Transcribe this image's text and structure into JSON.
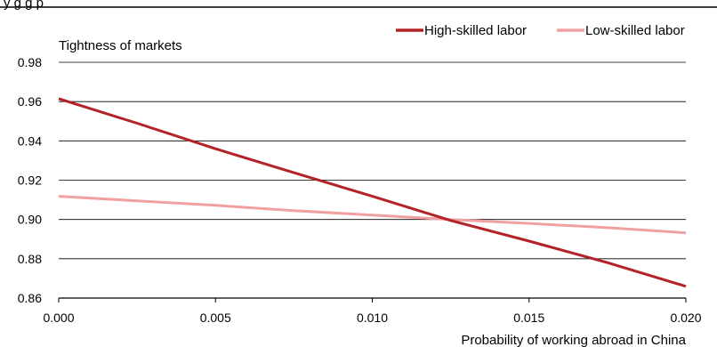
{
  "chart_data": {
    "type": "line",
    "top_title_partial": "y       g           g                     p",
    "ylabel": "Tightness of markets",
    "xlabel": "Probability of working abroad in China",
    "xlim": [
      0.0,
      0.02
    ],
    "ylim": [
      0.86,
      0.98
    ],
    "x_ticks": [
      "0.000",
      "0.005",
      "0.010",
      "0.015",
      "0.020"
    ],
    "x_tick_values": [
      0.0,
      0.005,
      0.01,
      0.015,
      0.02
    ],
    "y_ticks": [
      "0.86",
      "0.88",
      "0.90",
      "0.92",
      "0.94",
      "0.96",
      "0.98"
    ],
    "y_tick_values": [
      0.86,
      0.88,
      0.9,
      0.92,
      0.94,
      0.96,
      0.98
    ],
    "grid": "horizontal",
    "legend_position": "top-right",
    "series": [
      {
        "name": "High-skilled labor",
        "color": "#b22227",
        "x": [
          0.0,
          0.0025,
          0.005,
          0.0075,
          0.01,
          0.0125,
          0.015,
          0.0175,
          0.02
        ],
        "y": [
          0.9615,
          0.949,
          0.936,
          0.9238,
          0.9118,
          0.8995,
          0.889,
          0.878,
          0.866
        ]
      },
      {
        "name": "Low-skilled labor",
        "color": "#f0a0a0",
        "x": [
          0.0,
          0.0025,
          0.005,
          0.0075,
          0.01,
          0.0125,
          0.015,
          0.0175,
          0.02
        ],
        "y": [
          0.9118,
          0.9095,
          0.9072,
          0.9045,
          0.9022,
          0.9,
          0.898,
          0.8958,
          0.8932
        ]
      }
    ]
  }
}
